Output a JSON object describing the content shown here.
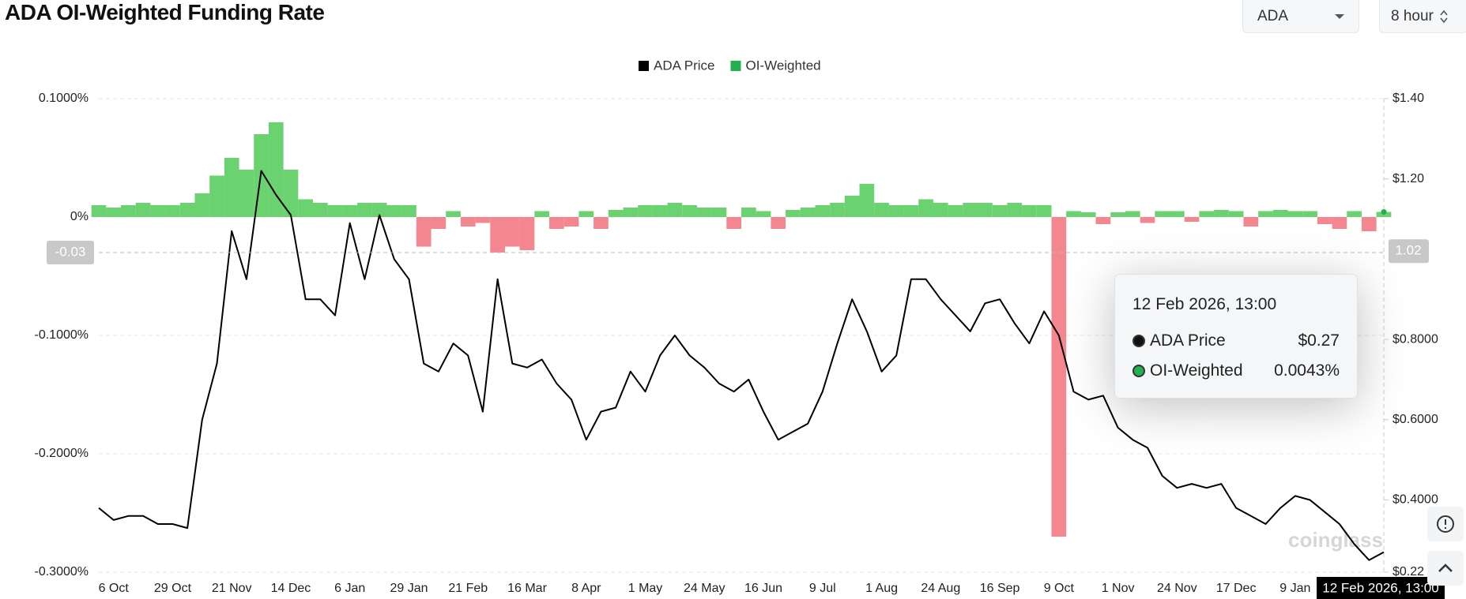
{
  "title": "ADA OI-Weighted Funding Rate",
  "controls": {
    "coin": "ADA",
    "interval": "8 hour"
  },
  "chart_data": {
    "type": "line",
    "categories": [
      null,
      "6 Oct",
      null,
      null,
      null,
      "29 Oct",
      null,
      null,
      null,
      "21 Nov",
      null,
      null,
      null,
      "14 Dec",
      null,
      null,
      null,
      "6 Jan",
      null,
      null,
      null,
      "29 Jan",
      null,
      null,
      null,
      "21 Feb",
      null,
      null,
      null,
      "16 Mar",
      null,
      null,
      null,
      "8 Apr",
      null,
      null,
      null,
      "1 May",
      null,
      null,
      null,
      "24 May",
      null,
      null,
      null,
      "16 Jun",
      null,
      null,
      null,
      "9 Jul",
      null,
      null,
      null,
      "1 Aug",
      null,
      null,
      null,
      "24 Aug",
      null,
      null,
      null,
      "16 Sep",
      null,
      null,
      null,
      "9 Oct",
      null,
      null,
      null,
      "1 Nov",
      null,
      null,
      null,
      "24 Nov",
      null,
      null,
      null,
      "17 Dec",
      null,
      null,
      null,
      "9 Jan",
      null,
      null,
      null,
      null,
      null,
      "12 Feb 2026, 13:00"
    ],
    "series": [
      {
        "name": "ADA Price",
        "type": "line",
        "axis": "y2",
        "color": "#000000",
        "values": [
          0.38,
          0.35,
          0.36,
          0.36,
          0.34,
          0.34,
          0.33,
          0.6,
          0.74,
          1.07,
          0.95,
          1.22,
          1.16,
          1.11,
          0.9,
          0.9,
          0.86,
          1.09,
          0.95,
          1.11,
          1.0,
          0.95,
          0.74,
          0.72,
          0.79,
          0.76,
          0.62,
          0.95,
          0.74,
          0.73,
          0.75,
          0.69,
          0.65,
          0.55,
          0.62,
          0.63,
          0.72,
          0.67,
          0.76,
          0.81,
          0.76,
          0.73,
          0.69,
          0.67,
          0.7,
          0.62,
          0.55,
          0.57,
          0.59,
          0.67,
          0.79,
          0.9,
          0.82,
          0.72,
          0.76,
          0.95,
          0.95,
          0.9,
          0.86,
          0.82,
          0.89,
          0.9,
          0.84,
          0.79,
          0.87,
          0.81,
          0.67,
          0.65,
          0.66,
          0.58,
          0.55,
          0.53,
          0.46,
          0.43,
          0.44,
          0.43,
          0.44,
          0.38,
          0.36,
          0.34,
          0.38,
          0.41,
          0.4,
          0.37,
          0.34,
          0.29,
          0.25,
          0.27
        ]
      },
      {
        "name": "OI-Weighted",
        "type": "bar",
        "axis": "y",
        "color": "#6ad26f",
        "negative_color": "#f4868f",
        "legend_color": "#22b14c",
        "values": [
          0.01,
          0.008,
          0.01,
          0.012,
          0.01,
          0.01,
          0.012,
          0.02,
          0.035,
          0.05,
          0.04,
          0.07,
          0.08,
          0.04,
          0.015,
          0.012,
          0.01,
          0.01,
          0.012,
          0.012,
          0.01,
          0.01,
          -0.025,
          -0.01,
          0.005,
          -0.008,
          -0.005,
          -0.03,
          -0.025,
          -0.028,
          0.005,
          -0.01,
          -0.008,
          0.005,
          -0.01,
          0.006,
          0.008,
          0.01,
          0.01,
          0.012,
          0.01,
          0.008,
          0.008,
          -0.01,
          0.008,
          0.005,
          -0.01,
          0.006,
          0.008,
          0.01,
          0.012,
          0.018,
          0.028,
          0.012,
          0.01,
          0.01,
          0.015,
          0.012,
          0.01,
          0.012,
          0.012,
          0.01,
          0.012,
          0.01,
          0.01,
          -0.27,
          0.005,
          0.004,
          -0.006,
          0.004,
          0.005,
          -0.005,
          0.005,
          0.005,
          -0.004,
          0.005,
          0.006,
          0.005,
          -0.008,
          0.005,
          0.006,
          0.005,
          0.005,
          -0.006,
          -0.01,
          0.005,
          -0.012,
          0.0043
        ]
      }
    ],
    "ylim": [
      -0.3,
      0.1
    ],
    "yticks": [
      {
        "value": 0.1,
        "label": "0.1000%"
      },
      {
        "value": 0,
        "label": "0%"
      },
      {
        "value": -0.1,
        "label": "-0.1000%"
      },
      {
        "value": -0.2,
        "label": "-0.2000%"
      },
      {
        "value": -0.3,
        "label": "-0.3000%"
      }
    ],
    "y2lim": [
      0.22,
      1.4
    ],
    "y2ticks": [
      {
        "value": 1.4,
        "label": "$1.40"
      },
      {
        "value": 1.2,
        "label": "$1.20"
      },
      {
        "value": 0.8,
        "label": "$0.8000"
      },
      {
        "value": 0.6,
        "label": "$0.6000"
      },
      {
        "value": 0.4,
        "label": "$0.4000"
      },
      {
        "value": 0.22,
        "label": "$0.22"
      }
    ],
    "grid": true,
    "legend": "top",
    "crosshair": {
      "y": -0.03,
      "y2": 1.02
    },
    "tooltip": {
      "values": [
        "$0.27",
        "0.0043%"
      ]
    },
    "watermark": "coinglass"
  }
}
